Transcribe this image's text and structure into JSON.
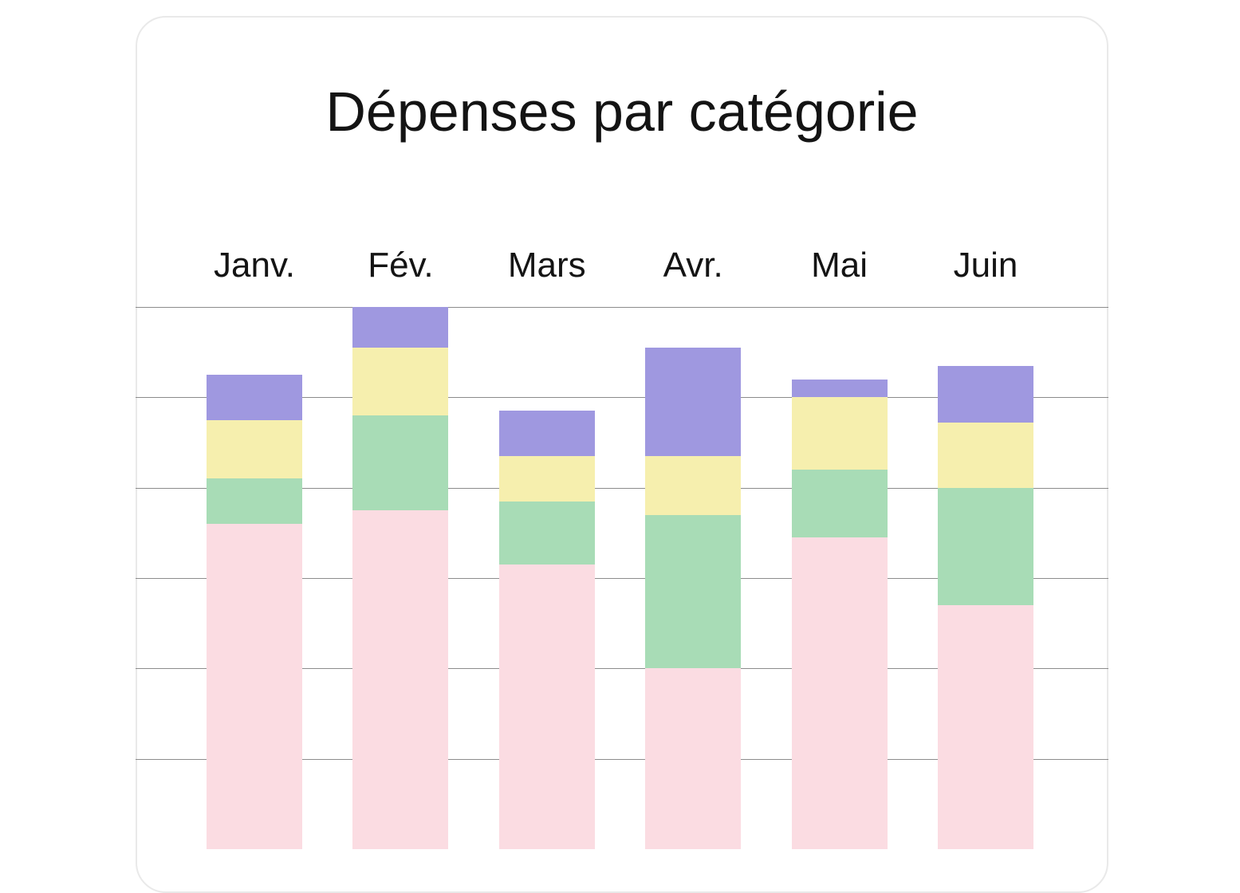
{
  "page": {
    "background": "#ffffff"
  },
  "card": {
    "background": "#ffffff",
    "border_color": "#e9e9e9"
  },
  "chart_data": {
    "type": "bar",
    "stacked": true,
    "title": "Dépenses par catégorie",
    "categories": [
      "Janv.",
      "Fév.",
      "Mars",
      "Avr.",
      "Mai",
      "Juin"
    ],
    "series": [
      {
        "name": "rose",
        "color": "#fbdce2",
        "values": [
          360,
          375,
          315,
          200,
          345,
          270
        ]
      },
      {
        "name": "vert",
        "color": "#a8dcb6",
        "values": [
          50,
          105,
          70,
          170,
          75,
          130
        ]
      },
      {
        "name": "jaune",
        "color": "#f6efae",
        "values": [
          65,
          75,
          50,
          65,
          80,
          72
        ]
      },
      {
        "name": "violet",
        "color": "#9f98e0",
        "values": [
          50,
          45,
          50,
          120,
          20,
          63
        ]
      }
    ],
    "xlabel": "",
    "ylabel": "",
    "ylim": [
      0,
      600
    ],
    "gridline_step": 100,
    "grid": true,
    "legend": false,
    "axis_tick_labels_visible": false,
    "note": "Aucune échelle numérique visible ; valeurs estimées à partir de l'espacement des lignes de grille (1 intervalle = 100). Le bas des barres est coupé par le bord inférieur de l'écran."
  }
}
